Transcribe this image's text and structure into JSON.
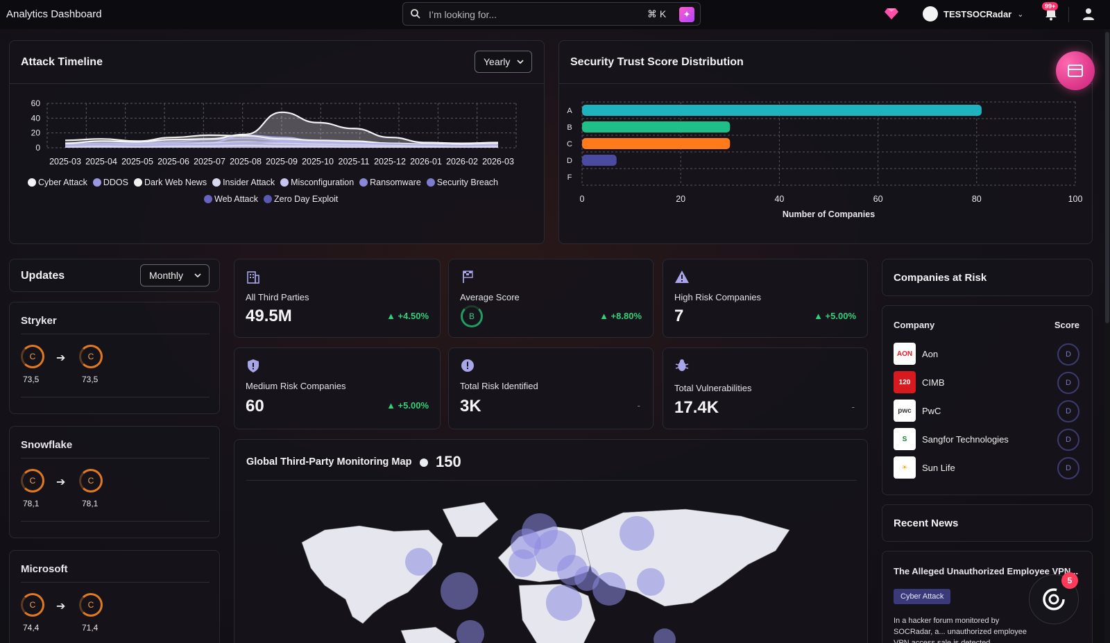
{
  "app": {
    "title": "Analytics Dashboard"
  },
  "search": {
    "placeholder": "I’m looking for...",
    "shortcut": "⌘ K"
  },
  "header": {
    "org_name": "TESTSOCRadar",
    "notification_count": "99+"
  },
  "attack_timeline": {
    "title": "Attack Timeline",
    "period": "Yearly",
    "legend": [
      "Cyber Attack",
      "DDOS",
      "Dark Web News",
      "Insider Attack",
      "Misconfiguration",
      "Ransomware",
      "Security Breach",
      "Web Attack",
      "Zero Day Exploit"
    ]
  },
  "chart_data": [
    {
      "type": "area",
      "title": "Attack Timeline",
      "x": [
        "2025-03",
        "2025-04",
        "2025-05",
        "2025-06",
        "2025-07",
        "2025-08",
        "2025-09",
        "2025-10",
        "2025-11",
        "2025-12",
        "2026-01",
        "2026-02",
        "2026-03"
      ],
      "ylim": [
        0,
        60
      ],
      "yticks": [
        0,
        20,
        40,
        60
      ],
      "grid": true,
      "legend_position": "bottom",
      "series": [
        {
          "name": "Cyber Attack",
          "color": "#f4f4f8",
          "values": [
            6,
            9,
            8,
            11,
            12,
            18,
            48,
            34,
            26,
            14,
            7,
            6,
            7
          ]
        },
        {
          "name": "DDOS",
          "color": "#9a98e0",
          "values": [
            3,
            4,
            3,
            4,
            5,
            7,
            8,
            7,
            6,
            5,
            4,
            3,
            4
          ]
        },
        {
          "name": "Dark Web News",
          "color": "#f0f0f0",
          "values": [
            10,
            12,
            9,
            14,
            17,
            16,
            12,
            10,
            9,
            6,
            5,
            4,
            5
          ]
        },
        {
          "name": "Insider Attack",
          "color": "#d8d8ec",
          "values": [
            1,
            2,
            1,
            2,
            2,
            3,
            2,
            2,
            1,
            1,
            1,
            1,
            1
          ]
        },
        {
          "name": "Misconfiguration",
          "color": "#c8c6f0",
          "values": [
            2,
            3,
            3,
            4,
            6,
            8,
            6,
            5,
            4,
            3,
            2,
            2,
            3
          ]
        },
        {
          "name": "Ransomware",
          "color": "#8a88d8",
          "values": [
            4,
            5,
            5,
            6,
            7,
            17,
            14,
            9,
            7,
            5,
            4,
            3,
            4
          ]
        },
        {
          "name": "Security Breach",
          "color": "#7d7bd0",
          "values": [
            5,
            6,
            6,
            8,
            11,
            13,
            10,
            8,
            6,
            5,
            5,
            4,
            5
          ]
        },
        {
          "name": "Web Attack",
          "color": "#6664c0",
          "values": [
            2,
            3,
            2,
            3,
            3,
            4,
            3,
            3,
            3,
            2,
            2,
            2,
            2
          ]
        },
        {
          "name": "Zero Day Exploit",
          "color": "#5a58b0",
          "values": [
            1,
            1,
            1,
            1,
            1,
            2,
            1,
            1,
            1,
            1,
            1,
            1,
            1
          ]
        }
      ]
    },
    {
      "type": "bar",
      "orientation": "horizontal",
      "title": "Security Trust Score Distribution",
      "categories": [
        "A",
        "B",
        "C",
        "D",
        "F"
      ],
      "values": [
        81,
        30,
        30,
        7,
        0
      ],
      "colors": [
        "#1fb3c0",
        "#1fbf8a",
        "#ff7a1a",
        "#4a4aa0",
        "#888888"
      ],
      "xlabel": "Number of Companies",
      "xlim": [
        0,
        100
      ],
      "xticks": [
        0,
        20,
        40,
        60,
        80,
        100
      ],
      "grid": true
    }
  ],
  "trust_score": {
    "title": "Security Trust Score Distribution",
    "xlabel": "Number of Companies"
  },
  "updates": {
    "title": "Updates",
    "period": "Monthly",
    "items": [
      {
        "company": "Stryker",
        "from_grade": "C",
        "from_score": "73,5",
        "to_grade": "C",
        "to_score": "73,5"
      },
      {
        "company": "Snowflake",
        "from_grade": "C",
        "from_score": "78,1",
        "to_grade": "C",
        "to_score": "78,1"
      },
      {
        "company": "Microsoft",
        "from_grade": "C",
        "from_score": "74,4",
        "to_grade": "C",
        "to_score": "71,4"
      }
    ]
  },
  "stats": [
    {
      "label": "All Third Parties",
      "value": "49.5M",
      "delta": "+4.50%"
    },
    {
      "label": "Average Score",
      "value": "B",
      "delta": "+8.80%"
    },
    {
      "label": "High Risk Companies",
      "value": "7",
      "delta": "+5.00%"
    },
    {
      "label": "Medium Risk Companies",
      "value": "60",
      "delta": "+5.00%"
    },
    {
      "label": "Total Risk Identified",
      "value": "3K",
      "delta": "-"
    },
    {
      "label": "Total Vulnerabilities",
      "value": "17.4K",
      "delta": "-"
    }
  ],
  "map": {
    "title": "Global Third-Party Monitoring Map",
    "count": "150"
  },
  "companies_at_risk": {
    "title": "Companies at Risk",
    "col_company": "Company",
    "col_score": "Score",
    "rows": [
      {
        "name": "Aon",
        "logo_text": "AON",
        "logo_bg": "#ffffff",
        "logo_fg": "#e31b23",
        "score": "D"
      },
      {
        "name": "CIMB",
        "logo_text": "120",
        "logo_bg": "#d71920",
        "logo_fg": "#ffffff",
        "score": "D"
      },
      {
        "name": "PwC",
        "logo_text": "pwc",
        "logo_bg": "#ffffff",
        "logo_fg": "#333333",
        "score": "D"
      },
      {
        "name": "Sangfor Technologies",
        "logo_text": "S",
        "logo_bg": "#ffffff",
        "logo_fg": "#1b7a3c",
        "score": "D"
      },
      {
        "name": "Sun Life",
        "logo_text": "☀",
        "logo_bg": "#ffffff",
        "logo_fg": "#f0a400",
        "score": "D"
      }
    ]
  },
  "recent_news": {
    "title": "Recent News",
    "headline": "The Alleged Unauthorized Employee VPN...",
    "tag": "Cyber Attack",
    "body": "In a hacker forum monitored by SOCRadar, a... unauthorized employee VPN access sale is detected"
  },
  "chat": {
    "badge": "5"
  }
}
